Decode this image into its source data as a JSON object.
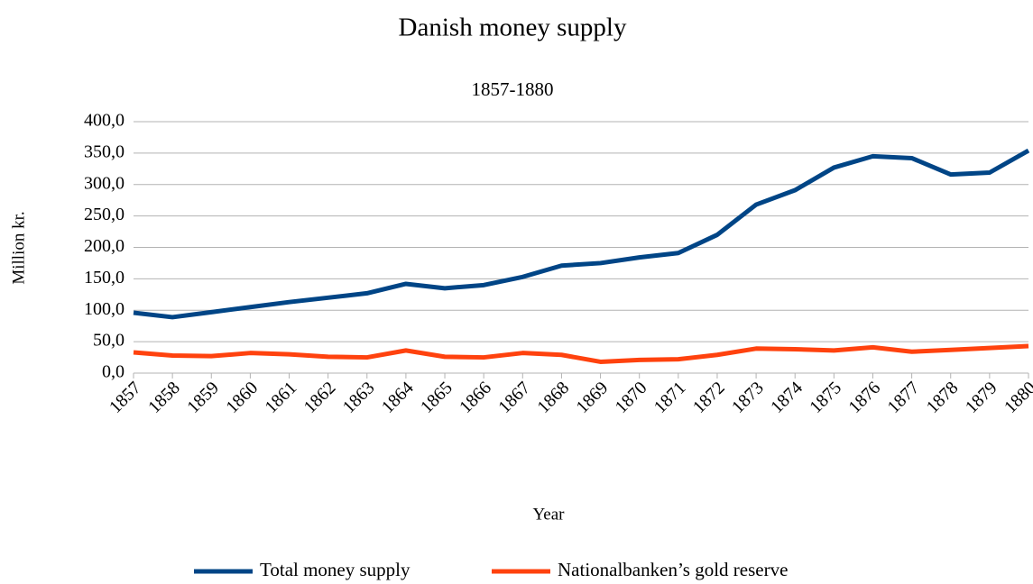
{
  "chart_data": {
    "type": "line",
    "title": "Danish money supply",
    "subtitle": "1857-1880",
    "x_label": "Year",
    "y_label": "Million kr.",
    "categories": [
      "1857",
      "1858",
      "1859",
      "1860",
      "1861",
      "1862",
      "1863",
      "1864",
      "1865",
      "1866",
      "1867",
      "1868",
      "1869",
      "1870",
      "1871",
      "1872",
      "1873",
      "1874",
      "1875",
      "1876",
      "1877",
      "1878",
      "1879",
      "1880"
    ],
    "series": [
      {
        "name": "Total money supply",
        "color": "#004586",
        "values": [
          96,
          89,
          97,
          105,
          113,
          120,
          127,
          142,
          135,
          140,
          153,
          171,
          175,
          184,
          191,
          220,
          268,
          291,
          327,
          345,
          342,
          316,
          319,
          354
        ]
      },
      {
        "name": "Nationalbanken’s gold reserve",
        "color": "#ff420e",
        "values": [
          33,
          28,
          27,
          32,
          30,
          26,
          25,
          36,
          26,
          25,
          32,
          29,
          18,
          21,
          22,
          29,
          39,
          38,
          36,
          41,
          34,
          37,
          40,
          43
        ]
      }
    ],
    "ylim": [
      0,
      400
    ],
    "yticks": [
      {
        "value": 0,
        "label": "0,0"
      },
      {
        "value": 50,
        "label": "50,0"
      },
      {
        "value": 100,
        "label": "100,0"
      },
      {
        "value": 150,
        "label": "150,0"
      },
      {
        "value": 200,
        "label": "200,0"
      },
      {
        "value": 250,
        "label": "250,0"
      },
      {
        "value": 300,
        "label": "300,0"
      },
      {
        "value": 350,
        "label": "350,0"
      },
      {
        "value": 400,
        "label": "400,0"
      }
    ],
    "grid": true,
    "legend": "bottom"
  }
}
